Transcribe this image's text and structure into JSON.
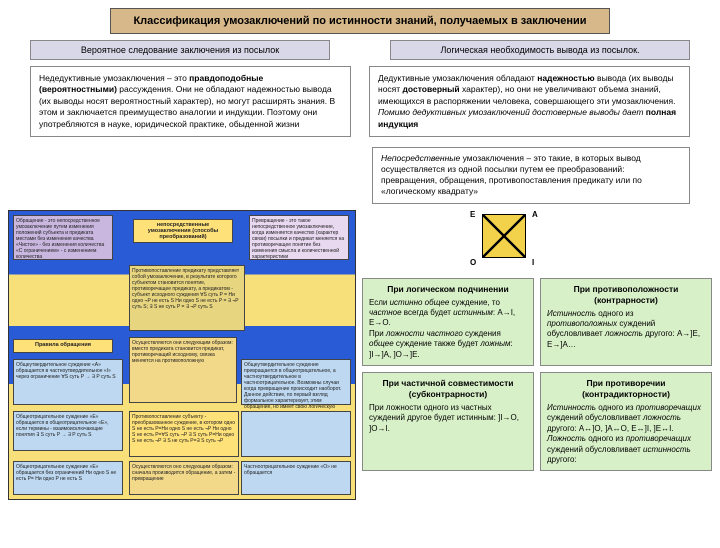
{
  "title": "Классификация умозаключений по истинности знаний, получаемых в заключении",
  "sub_left": "Вероятное следование заключения из посылок",
  "sub_right": "Логическая необходимость вывода из посылок.",
  "explain_left": "Недедуктивные умозаключения – это <b>правдоподобные (вероятностными)</b> рассуждения. Они не обладают надежностью вывода (их выводы носят вероятностный характер), но могут расширять знания. В этом и заключается преимущество аналогии и индукции. Поэтому они употребляются в науке, юридической практике, обыденной жизни",
  "explain_right": "Дедуктивные умозаключения обладают <b>надежностью</b> вывода (их выводы носят <b>достоверный</b> характер), но они не увеличивают объема знаний, имеющихся в распоряжении человека, совершающего эти умозаключения. <i>Помимо дедуктивных умозаключений достоверные выводы дает</i> <b>полная индукция</b>",
  "immediate": "<i>Непосредственные</i> умозаключения – это такие, в которых вывод осуществляется из одной посылки путем ее преобразований: превращения, обращения, противопоставления предикату или по «логическому квадрату»",
  "square": {
    "E": "E",
    "A": "A",
    "O": "O",
    "I": "I"
  },
  "left_diagram": {
    "ov1": "Обращение - это непосредственное умозаключение путем изменения положений субъекта и предиката местами без изменения качества «Чистое» - без изменения количества\\n«С ограничением» - с изменением количества",
    "ov2": "Превращение - это такое непосредственное умозаключение, когда изменяется качество (характер связи) посылки и предикат меняется на противоречащее понятие без изменения смысла и количественной характеристики",
    "ov3": "непосредственные умозаключения (способы преобразований)",
    "ov4": "Противопоставление предикату представляет собой умозаключение, в результате которого субъектом становится понятие, противоречащее предикату, а предикатом - субъект исходного суждения\\n∀S суть P = Ни одно ¬P не есть S\\nНи одно S не есть P = ∃ ¬P суть S;\\n∃ S не суть P = ∃ ¬P суть S",
    "ov5": "Правила обращения",
    "ov6": "Общеутвердительное суждение «А» обращается в частноутвердительное «I» через ограничение\\n∀S суть P → ∃ P суть S",
    "ov7": "Общеутвердительное суждение превращается в общеотрицательное, а частноутвердительное в частноотрицательное. Возможны случаи когда превращение происходит наоборот. Данное действие, по первый взгляд формальное характеризует, этим обращение, но имеет свою логическую ценность",
    "ov8": "Осуществляются они следующим образом: вместо предиката становится предикат, противоречащий исходному, связка меняется на противоположную",
    "ov9": "Общеотрицательное суждение «Е» обращается в общеотрицательное «Е», если термины - взаимоисключающие понятия\\n∃ S суть P → ∃ P суть S",
    "ov10": "Противопоставление субъекту - преобразованное суждение, в котором одно S не есть P=Ни одно S не есть ¬P\\nНи одно S не есть P=∀S суть ¬P\\n∃ S суть P=Ни одно S не есть ¬P\\n∃ S не суть P=∃ S суть ¬P",
    "ov11": "",
    "ov12": "Общеотрицательное суждение «Е» обращается без ограничений\\nНи одно S не есть P= Ни одно P не есть S",
    "ov13": "Осуществляются оно следующим образом: сначала производится обращение, а затем - превращение",
    "ov14": "Частноотрицательное суждение «О» не обращается"
  },
  "cards": {
    "c1_title": "При логическом подчинении",
    "c1_body": "Если <i>истинно общее</i> суждение, то <i>частное</i> всегда будет <i>истинным</i>: A→I, E→O.\\nПри <i>ложности частного</i> суждения <i>общее</i> суждение также будет <i>ложным</i>: ]I→]A, ]O→]E.",
    "c2_title": "При противоположности (контрарности)",
    "c2_body": "<i>Истинность</i> одного из <i>противоположных</i> суждений обусловливает <i>ложность</i> другого: A→]E, E→]A…",
    "c3_title": "При частичной совместимости (субконтрарности)",
    "c3_body": "При ложности одного из частных суждений другое будет истинным: ]I→O, ]O→I.",
    "c4_title": "При противоречии (контрадикторности)",
    "c4_body": "<i>Истинность</i> одного из <i>противоречащих</i> суждений обусловливает <i>ложность</i> другого: A↔]O, ]A↔O, E↔]I, ]E↔I. <i>Ложность</i> одного из <i>противоречащих</i> суждений обусловливает <i>истинность</i> другого:"
  },
  "colors": {
    "title_bg": "#d6b88a",
    "sub_bg": "#d8d8e8",
    "card_bg": "#d8f0c8",
    "square_fill": "#f2d24a"
  }
}
